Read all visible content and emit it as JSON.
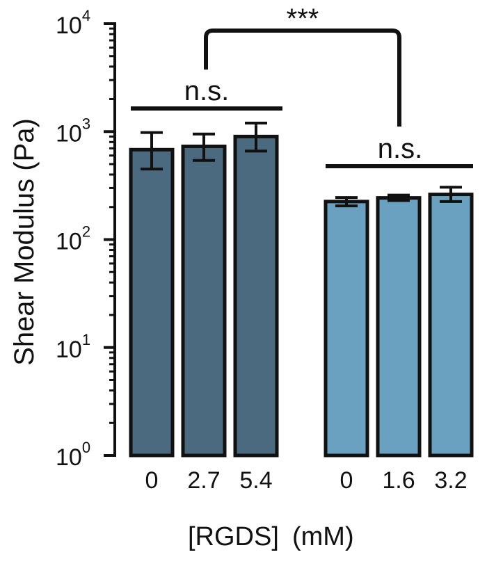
{
  "chart_data": {
    "type": "bar",
    "title": "",
    "ylabel": "Shear Modulus (Pa)",
    "xlabel_left": "[RGDS]",
    "xlabel_right": "(mM)",
    "yscale": "log",
    "ylim": [
      1,
      10000
    ],
    "y_ticks": [
      {
        "value": 1,
        "base": "10",
        "exp": "0"
      },
      {
        "value": 10,
        "base": "10",
        "exp": "1"
      },
      {
        "value": 100,
        "base": "10",
        "exp": "2"
      },
      {
        "value": 1000,
        "base": "10",
        "exp": "3"
      },
      {
        "value": 10000,
        "base": "10",
        "exp": "4"
      }
    ],
    "groups": [
      {
        "color": "#4b6a80",
        "bars": [
          {
            "label": "0",
            "value": 680,
            "err_low": 450,
            "err_high": 980
          },
          {
            "label": "2.7",
            "value": 730,
            "err_low": 540,
            "err_high": 950
          },
          {
            "label": "5.4",
            "value": 900,
            "err_low": 660,
            "err_high": 1200
          }
        ]
      },
      {
        "color": "#6aa1c0",
        "bars": [
          {
            "label": "0",
            "value": 225,
            "err_low": 205,
            "err_high": 245
          },
          {
            "label": "1.6",
            "value": 243,
            "err_low": 230,
            "err_high": 258
          },
          {
            "label": "3.2",
            "value": 262,
            "err_low": 225,
            "err_high": 305
          }
        ]
      }
    ],
    "annotations": {
      "group1_sig": "n.s.",
      "group2_sig": "n.s.",
      "between_sig": "***"
    },
    "grid": false
  }
}
